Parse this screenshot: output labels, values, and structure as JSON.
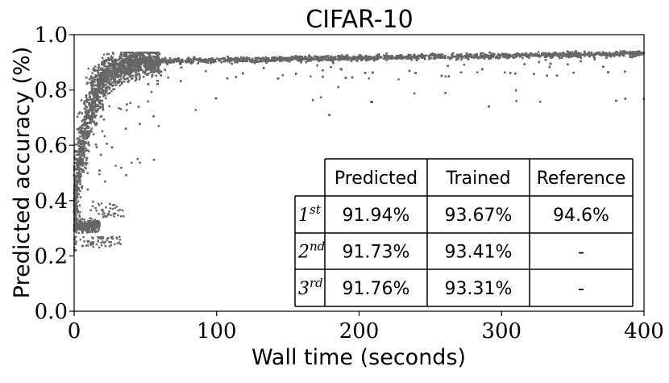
{
  "chart_data": {
    "type": "scatter",
    "title": "CIFAR-10",
    "xlabel": "Wall time (seconds)",
    "ylabel": "Predicted accuracy (%)",
    "xlim": [
      0,
      400
    ],
    "ylim": [
      0.0,
      1.0
    ],
    "x_ticks": [
      "0",
      "100",
      "200",
      "300",
      "400"
    ],
    "y_ticks": [
      "0.0",
      "0.2",
      "0.4",
      "0.6",
      "0.8",
      "1.0"
    ],
    "grid": false,
    "legend": "none",
    "marker_color": "#666666",
    "series": [
      {
        "points_summary": "Dense cloud of roughly 12,000 grey points: rapid rise from 0.3 near 0 s to about 0.9 by 50 s, then a slowly increasing plateau reaching about 0.93 at 400 s; an early cluster near 0.33 around 10–20 s and a sparse tail of lower points below the plateau.",
        "approx_envelope": {
          "x": [
            0,
            5,
            10,
            20,
            30,
            50,
            75,
            100,
            150,
            200,
            250,
            300,
            350,
            400
          ],
          "y_median": [
            0.55,
            0.65,
            0.72,
            0.8,
            0.85,
            0.885,
            0.9,
            0.905,
            0.912,
            0.918,
            0.922,
            0.925,
            0.927,
            0.93
          ]
        }
      }
    ],
    "table": {
      "columns": [
        "Predicted",
        "Trained",
        "Reference"
      ],
      "rows": [
        {
          "rank": "1",
          "suffix": "st",
          "values": [
            "91.94%",
            "93.67%",
            "94.6%"
          ]
        },
        {
          "rank": "2",
          "suffix": "nd",
          "values": [
            "91.73%",
            "93.41%",
            "-"
          ]
        },
        {
          "rank": "3",
          "suffix": "rd",
          "values": [
            "91.76%",
            "93.31%",
            "-"
          ]
        }
      ]
    }
  }
}
